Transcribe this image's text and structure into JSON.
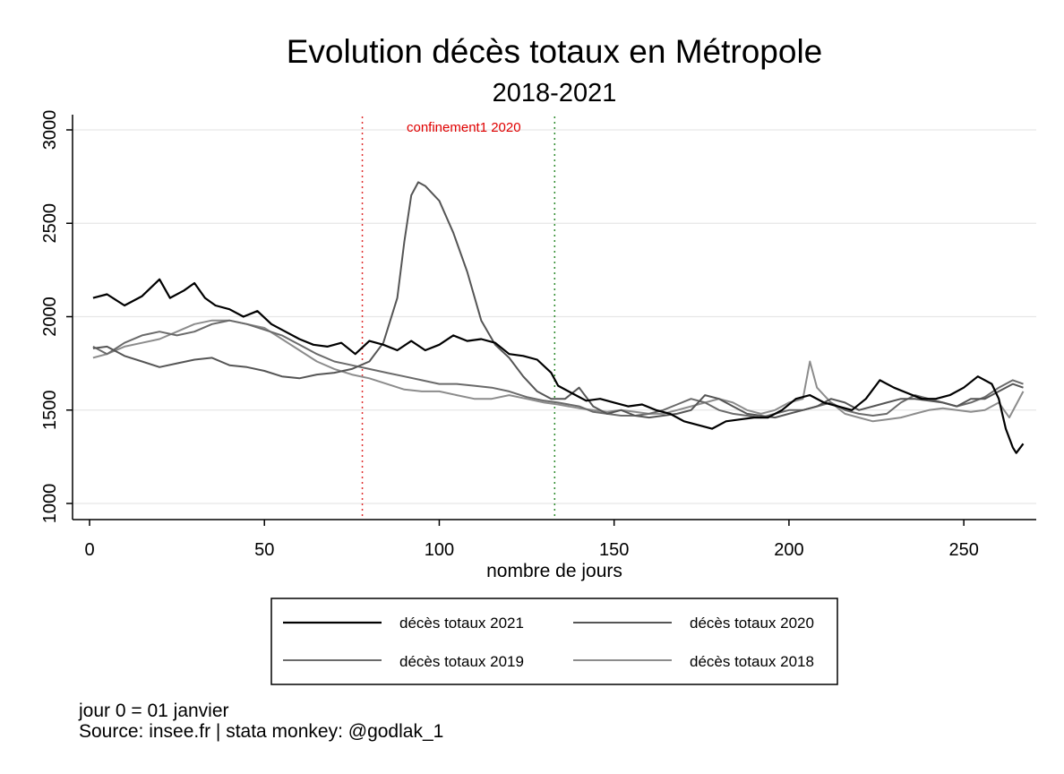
{
  "chart_data": {
    "type": "line",
    "title": "Evolution décès totaux en Métropole",
    "subtitle": "2018-2021",
    "xlabel": "nombre de jours",
    "ylabel": "",
    "xlim": [
      0,
      268
    ],
    "ylim": [
      920,
      3080
    ],
    "x_ticks": [
      0,
      50,
      100,
      150,
      200,
      250
    ],
    "y_ticks": [
      1000,
      1500,
      2000,
      2500,
      3000
    ],
    "grid": "horizontal",
    "legend": {
      "position": "bottom",
      "columns": 2,
      "entries": [
        "décès totaux 2021",
        "décès totaux 2020",
        "décès totaux 2019",
        "décès totaux 2018"
      ]
    },
    "annotations": [
      {
        "type": "vline",
        "x": 78,
        "color": "#e03030"
      },
      {
        "type": "vline",
        "x": 133,
        "color": "#2e8b2e"
      },
      {
        "type": "text",
        "text": "confinement1 2020",
        "x": 107,
        "y": 2990,
        "color": "#e00000"
      }
    ],
    "notes": [
      "jour 0 = 01 janvier",
      "Source: insee.fr | stata monkey: @godlak_1"
    ],
    "series": [
      {
        "name": "décès totaux 2021",
        "color": "#000000",
        "width": 2.2,
        "points": [
          [
            1,
            2100
          ],
          [
            5,
            2120
          ],
          [
            10,
            2060
          ],
          [
            15,
            2110
          ],
          [
            20,
            2200
          ],
          [
            23,
            2100
          ],
          [
            27,
            2140
          ],
          [
            30,
            2180
          ],
          [
            33,
            2100
          ],
          [
            36,
            2060
          ],
          [
            40,
            2040
          ],
          [
            44,
            2000
          ],
          [
            48,
            2030
          ],
          [
            52,
            1960
          ],
          [
            56,
            1920
          ],
          [
            60,
            1880
          ],
          [
            64,
            1850
          ],
          [
            68,
            1840
          ],
          [
            72,
            1860
          ],
          [
            76,
            1800
          ],
          [
            80,
            1870
          ],
          [
            84,
            1850
          ],
          [
            88,
            1820
          ],
          [
            92,
            1870
          ],
          [
            96,
            1820
          ],
          [
            100,
            1850
          ],
          [
            104,
            1900
          ],
          [
            108,
            1870
          ],
          [
            112,
            1880
          ],
          [
            116,
            1860
          ],
          [
            120,
            1800
          ],
          [
            124,
            1790
          ],
          [
            128,
            1770
          ],
          [
            132,
            1700
          ],
          [
            134,
            1630
          ],
          [
            138,
            1590
          ],
          [
            142,
            1550
          ],
          [
            146,
            1560
          ],
          [
            150,
            1540
          ],
          [
            154,
            1520
          ],
          [
            158,
            1530
          ],
          [
            162,
            1500
          ],
          [
            166,
            1480
          ],
          [
            170,
            1440
          ],
          [
            174,
            1420
          ],
          [
            178,
            1400
          ],
          [
            182,
            1440
          ],
          [
            186,
            1450
          ],
          [
            190,
            1460
          ],
          [
            194,
            1460
          ],
          [
            198,
            1500
          ],
          [
            202,
            1560
          ],
          [
            206,
            1580
          ],
          [
            210,
            1540
          ],
          [
            214,
            1520
          ],
          [
            218,
            1500
          ],
          [
            222,
            1560
          ],
          [
            226,
            1660
          ],
          [
            230,
            1620
          ],
          [
            234,
            1590
          ],
          [
            238,
            1560
          ],
          [
            242,
            1560
          ],
          [
            246,
            1580
          ],
          [
            250,
            1620
          ],
          [
            254,
            1680
          ],
          [
            258,
            1640
          ],
          [
            260,
            1560
          ],
          [
            262,
            1400
          ],
          [
            264,
            1300
          ],
          [
            265,
            1270
          ],
          [
            267,
            1320
          ]
        ]
      },
      {
        "name": "décès totaux 2020",
        "color": "#555555",
        "width": 2.0,
        "points": [
          [
            1,
            1830
          ],
          [
            5,
            1840
          ],
          [
            10,
            1790
          ],
          [
            15,
            1760
          ],
          [
            20,
            1730
          ],
          [
            25,
            1750
          ],
          [
            30,
            1770
          ],
          [
            35,
            1780
          ],
          [
            40,
            1740
          ],
          [
            45,
            1730
          ],
          [
            50,
            1710
          ],
          [
            55,
            1680
          ],
          [
            60,
            1670
          ],
          [
            65,
            1690
          ],
          [
            70,
            1700
          ],
          [
            75,
            1720
          ],
          [
            80,
            1760
          ],
          [
            84,
            1860
          ],
          [
            88,
            2100
          ],
          [
            90,
            2400
          ],
          [
            92,
            2650
          ],
          [
            94,
            2720
          ],
          [
            96,
            2700
          ],
          [
            100,
            2620
          ],
          [
            104,
            2450
          ],
          [
            108,
            2240
          ],
          [
            112,
            1980
          ],
          [
            116,
            1850
          ],
          [
            120,
            1780
          ],
          [
            124,
            1680
          ],
          [
            128,
            1600
          ],
          [
            132,
            1560
          ],
          [
            136,
            1560
          ],
          [
            140,
            1620
          ],
          [
            144,
            1520
          ],
          [
            148,
            1480
          ],
          [
            152,
            1500
          ],
          [
            156,
            1470
          ],
          [
            160,
            1460
          ],
          [
            164,
            1470
          ],
          [
            168,
            1480
          ],
          [
            172,
            1500
          ],
          [
            176,
            1580
          ],
          [
            180,
            1560
          ],
          [
            184,
            1520
          ],
          [
            188,
            1480
          ],
          [
            192,
            1470
          ],
          [
            196,
            1460
          ],
          [
            200,
            1480
          ],
          [
            204,
            1500
          ],
          [
            208,
            1520
          ],
          [
            212,
            1560
          ],
          [
            216,
            1540
          ],
          [
            220,
            1500
          ],
          [
            224,
            1520
          ],
          [
            228,
            1540
          ],
          [
            232,
            1560
          ],
          [
            236,
            1560
          ],
          [
            240,
            1550
          ],
          [
            244,
            1540
          ],
          [
            248,
            1520
          ],
          [
            252,
            1560
          ],
          [
            256,
            1560
          ],
          [
            260,
            1600
          ],
          [
            264,
            1640
          ],
          [
            267,
            1620
          ]
        ]
      },
      {
        "name": "décès totaux 2019",
        "color": "#6a6a6a",
        "width": 2.0,
        "points": [
          [
            1,
            1840
          ],
          [
            5,
            1800
          ],
          [
            10,
            1860
          ],
          [
            15,
            1900
          ],
          [
            20,
            1920
          ],
          [
            25,
            1900
          ],
          [
            30,
            1920
          ],
          [
            35,
            1960
          ],
          [
            40,
            1980
          ],
          [
            45,
            1960
          ],
          [
            50,
            1930
          ],
          [
            55,
            1900
          ],
          [
            60,
            1850
          ],
          [
            65,
            1800
          ],
          [
            70,
            1760
          ],
          [
            75,
            1740
          ],
          [
            80,
            1720
          ],
          [
            85,
            1700
          ],
          [
            90,
            1680
          ],
          [
            95,
            1660
          ],
          [
            100,
            1640
          ],
          [
            105,
            1640
          ],
          [
            110,
            1630
          ],
          [
            115,
            1620
          ],
          [
            120,
            1600
          ],
          [
            125,
            1570
          ],
          [
            130,
            1550
          ],
          [
            134,
            1540
          ],
          [
            140,
            1520
          ],
          [
            144,
            1490
          ],
          [
            148,
            1480
          ],
          [
            152,
            1470
          ],
          [
            156,
            1470
          ],
          [
            160,
            1480
          ],
          [
            164,
            1500
          ],
          [
            168,
            1530
          ],
          [
            172,
            1560
          ],
          [
            176,
            1540
          ],
          [
            180,
            1500
          ],
          [
            184,
            1480
          ],
          [
            188,
            1470
          ],
          [
            192,
            1460
          ],
          [
            196,
            1480
          ],
          [
            200,
            1500
          ],
          [
            204,
            1500
          ],
          [
            208,
            1520
          ],
          [
            212,
            1540
          ],
          [
            216,
            1500
          ],
          [
            220,
            1480
          ],
          [
            224,
            1470
          ],
          [
            228,
            1480
          ],
          [
            232,
            1540
          ],
          [
            236,
            1580
          ],
          [
            240,
            1560
          ],
          [
            244,
            1540
          ],
          [
            248,
            1520
          ],
          [
            252,
            1540
          ],
          [
            256,
            1570
          ],
          [
            260,
            1620
          ],
          [
            264,
            1660
          ],
          [
            267,
            1640
          ]
        ]
      },
      {
        "name": "décès totaux 2018",
        "color": "#8c8c8c",
        "width": 2.0,
        "points": [
          [
            1,
            1780
          ],
          [
            5,
            1800
          ],
          [
            10,
            1840
          ],
          [
            15,
            1860
          ],
          [
            20,
            1880
          ],
          [
            25,
            1920
          ],
          [
            30,
            1960
          ],
          [
            35,
            1980
          ],
          [
            40,
            1980
          ],
          [
            45,
            1960
          ],
          [
            50,
            1940
          ],
          [
            55,
            1880
          ],
          [
            60,
            1820
          ],
          [
            65,
            1760
          ],
          [
            70,
            1720
          ],
          [
            75,
            1690
          ],
          [
            80,
            1670
          ],
          [
            85,
            1640
          ],
          [
            90,
            1610
          ],
          [
            95,
            1600
          ],
          [
            100,
            1600
          ],
          [
            105,
            1580
          ],
          [
            110,
            1560
          ],
          [
            115,
            1560
          ],
          [
            120,
            1580
          ],
          [
            125,
            1560
          ],
          [
            130,
            1540
          ],
          [
            134,
            1530
          ],
          [
            140,
            1510
          ],
          [
            144,
            1500
          ],
          [
            148,
            1490
          ],
          [
            152,
            1500
          ],
          [
            156,
            1490
          ],
          [
            160,
            1480
          ],
          [
            164,
            1480
          ],
          [
            168,
            1500
          ],
          [
            172,
            1520
          ],
          [
            176,
            1540
          ],
          [
            180,
            1560
          ],
          [
            184,
            1540
          ],
          [
            188,
            1500
          ],
          [
            192,
            1480
          ],
          [
            196,
            1500
          ],
          [
            200,
            1540
          ],
          [
            204,
            1560
          ],
          [
            206,
            1760
          ],
          [
            208,
            1620
          ],
          [
            212,
            1540
          ],
          [
            216,
            1480
          ],
          [
            220,
            1460
          ],
          [
            224,
            1440
          ],
          [
            228,
            1450
          ],
          [
            232,
            1460
          ],
          [
            236,
            1480
          ],
          [
            240,
            1500
          ],
          [
            244,
            1510
          ],
          [
            248,
            1500
          ],
          [
            252,
            1490
          ],
          [
            256,
            1500
          ],
          [
            260,
            1540
          ],
          [
            263,
            1460
          ],
          [
            267,
            1600
          ]
        ]
      }
    ]
  }
}
